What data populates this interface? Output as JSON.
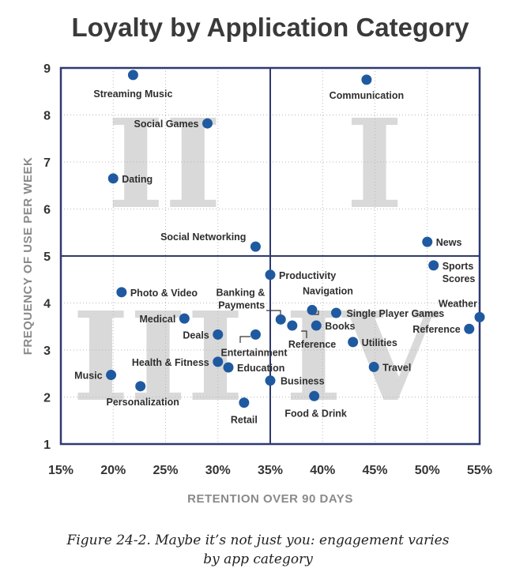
{
  "caption": {
    "line1": "Figure 24-2. Maybe it’s not just you: engagement varies",
    "line2": "by app category"
  },
  "colors": {
    "point": "#1f5aa0",
    "frame": "#2f3970",
    "quadrant_text": "#d9d9d9"
  },
  "chart_data": {
    "type": "scatter",
    "title": "Loyalty by Application Category",
    "xlabel": "RETENTION OVER 90 DAYS",
    "ylabel": "FREQUENCY OF USE PER WEEK",
    "xlim": [
      15,
      55
    ],
    "ylim": [
      1,
      9
    ],
    "x_ticks": [
      "15%",
      "20%",
      "25%",
      "30%",
      "35%",
      "40%",
      "45%",
      "50%",
      "55%"
    ],
    "y_ticks": [
      "1",
      "2",
      "3",
      "4",
      "5",
      "6",
      "7",
      "8",
      "9"
    ],
    "dividers": {
      "x": 35,
      "y": 5
    },
    "quadrants": [
      "I",
      "II",
      "III",
      "IV"
    ],
    "points": [
      {
        "label": "Streaming Music",
        "x": 21.9,
        "y": 8.85
      },
      {
        "label": "Communication",
        "x": 44.2,
        "y": 8.75
      },
      {
        "label": "Social Games",
        "x": 29.0,
        "y": 7.82
      },
      {
        "label": "Dating",
        "x": 20.0,
        "y": 6.65
      },
      {
        "label": "Social Networking",
        "x": 33.6,
        "y": 5.2
      },
      {
        "label": "News",
        "x": 50.0,
        "y": 5.3
      },
      {
        "label": "Sports Scores",
        "x": 50.6,
        "y": 4.8
      },
      {
        "label": "Productivity",
        "x": 35.0,
        "y": 4.6
      },
      {
        "label": "Photo & Video",
        "x": 20.8,
        "y": 4.23
      },
      {
        "label": "Navigation",
        "x": 39.0,
        "y": 3.85
      },
      {
        "label": "Single Player Games",
        "x": 41.3,
        "y": 3.79
      },
      {
        "label": "Weather",
        "x": 55.0,
        "y": 3.7
      },
      {
        "label": "Medical",
        "x": 26.8,
        "y": 3.67
      },
      {
        "label": "Banking & Payments",
        "x": 36.0,
        "y": 3.65
      },
      {
        "label": "Books",
        "x": 39.4,
        "y": 3.52
      },
      {
        "label": "Reference",
        "x": 37.1,
        "y": 3.52
      },
      {
        "label": "Reference",
        "x": 54.0,
        "y": 3.45
      },
      {
        "label": "Deals",
        "x": 30.0,
        "y": 3.33
      },
      {
        "label": "Entertainment",
        "x": 33.6,
        "y": 3.33
      },
      {
        "label": "Utilities",
        "x": 42.9,
        "y": 3.17
      },
      {
        "label": "Health & Fitness",
        "x": 30.0,
        "y": 2.75
      },
      {
        "label": "Education",
        "x": 31.0,
        "y": 2.63
      },
      {
        "label": "Travel",
        "x": 44.9,
        "y": 2.64
      },
      {
        "label": "Music",
        "x": 19.8,
        "y": 2.47
      },
      {
        "label": "Business",
        "x": 35.0,
        "y": 2.35
      },
      {
        "label": "Personalization",
        "x": 22.6,
        "y": 2.23
      },
      {
        "label": "Food & Drink",
        "x": 39.2,
        "y": 2.02
      },
      {
        "label": "Retail",
        "x": 32.5,
        "y": 1.88
      }
    ]
  }
}
